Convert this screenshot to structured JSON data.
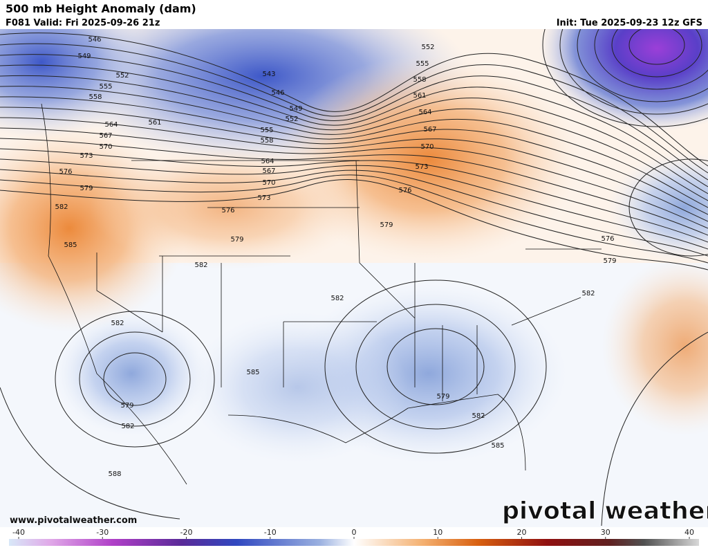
{
  "header": {
    "title": "500 mb Height Anomaly (dam)",
    "valid": "F081 Valid: Fri 2025-09-26 21z",
    "init": "Init: Tue 2025-09-23 12z GFS"
  },
  "contour_labels": [
    546,
    549,
    552,
    555,
    558,
    564,
    561,
    567,
    570,
    573,
    576,
    579,
    582,
    585,
    543,
    546,
    549,
    552,
    555,
    558,
    564,
    567,
    570,
    573,
    576,
    579,
    582,
    582,
    552,
    555,
    558,
    561,
    564,
    567,
    570,
    573,
    576,
    579,
    576,
    579,
    582,
    582,
    579,
    582,
    585,
    579,
    582,
    585,
    588
  ],
  "watermark": {
    "url": "www.pivotalweather.com",
    "logo": "pivotal weather"
  },
  "colorbar": {
    "ticks": [
      -40,
      -30,
      -20,
      -10,
      0,
      10,
      20,
      30,
      40
    ]
  }
}
